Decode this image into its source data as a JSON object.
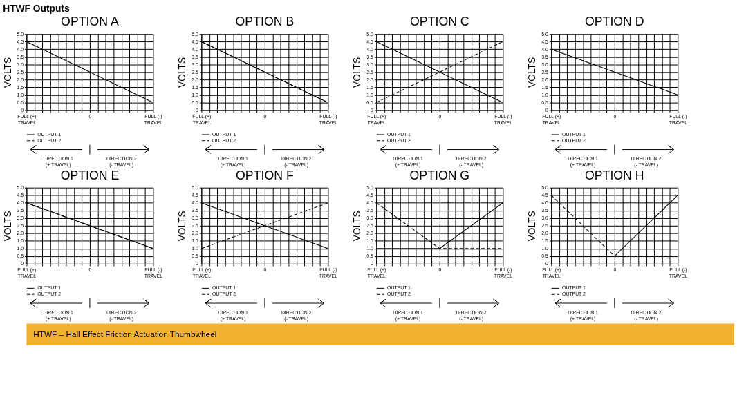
{
  "chart_data": [
    {
      "type": "line",
      "title": "OPTION A",
      "ylabel": "VOLTS",
      "categories": [
        "FULL (+)\nTRAVEL",
        null,
        null,
        null,
        null,
        null,
        null,
        null,
        "0",
        null,
        null,
        null,
        null,
        null,
        null,
        null,
        "FULL (-)\nTRAVEL"
      ],
      "ylim": [
        0,
        5
      ],
      "yticks": [
        0,
        0.5,
        {
          "value": 1,
          "label": "1.0"
        },
        1.5,
        {
          "value": 2,
          "label": "2.0"
        },
        2.5,
        {
          "value": 3,
          "label": "3.0"
        },
        3.5,
        {
          "value": 4,
          "label": "4.0"
        },
        4.5,
        {
          "value": 5,
          "label": "5.0"
        }
      ],
      "grid": true,
      "legend": "bottom left",
      "annotations": [
        "DIRECTION 1\n(+ TRAVEL)",
        "DIRECTION 2\n(- TRAVEL)"
      ],
      "series": [
        {
          "name": "OUTPUT 1",
          "color": "#000000",
          "line_style": "solid",
          "values": [
            4.5,
            4.25,
            4.0,
            3.75,
            3.5,
            3.25,
            3.0,
            2.75,
            2.5,
            2.25,
            2.0,
            1.75,
            1.5,
            1.25,
            1.0,
            0.75,
            0.5
          ]
        },
        {
          "name": "OUTPUT 2",
          "color": "#000000",
          "line_style": "dashed",
          "values": [
            null,
            null,
            null,
            null,
            null,
            null,
            null,
            null,
            null,
            null,
            null,
            null,
            null,
            null,
            null,
            null,
            null
          ]
        }
      ]
    },
    {
      "type": "line",
      "title": "OPTION B",
      "ylabel": "VOLTS",
      "categories": [
        "FULL (+)\nTRAVEL",
        null,
        null,
        null,
        null,
        null,
        null,
        null,
        "0",
        null,
        null,
        null,
        null,
        null,
        null,
        null,
        "FULL (-)\nTRAVEL"
      ],
      "ylim": [
        0,
        5
      ],
      "yticks": [
        0,
        0.5,
        {
          "value": 1,
          "label": "1.0"
        },
        1.5,
        {
          "value": 2,
          "label": "2.0"
        },
        2.5,
        {
          "value": 3,
          "label": "3.0"
        },
        3.5,
        {
          "value": 4,
          "label": "4.0"
        },
        4.5,
        {
          "value": 5,
          "label": "5.0"
        }
      ],
      "grid": true,
      "legend": "bottom left",
      "annotations": [
        "DIRECTION 1\n(+ TRAVEL)",
        "DIRECTION 2\n(- TRAVEL)"
      ],
      "series": [
        {
          "name": "OUTPUT 1",
          "color": "#000000",
          "line_style": "solid",
          "values": [
            4.5,
            4.25,
            4.0,
            3.75,
            3.5,
            3.25,
            3.0,
            2.75,
            2.5,
            2.25,
            2.0,
            1.75,
            1.5,
            1.25,
            1.0,
            0.75,
            0.5
          ]
        },
        {
          "name": "OUTPUT 2",
          "color": "#000000",
          "line_style": "dashed",
          "values": [
            4.5,
            4.25,
            4.0,
            3.75,
            3.5,
            3.25,
            3.0,
            2.75,
            2.5,
            2.25,
            2.0,
            1.75,
            1.5,
            1.25,
            1.0,
            0.75,
            0.5
          ]
        }
      ]
    },
    {
      "type": "line",
      "title": "OPTION C",
      "ylabel": "VOLTS",
      "categories": [
        "FULL (+)\nTRAVEL",
        null,
        null,
        null,
        null,
        null,
        null,
        null,
        "0",
        null,
        null,
        null,
        null,
        null,
        null,
        null,
        "FULL (-)\nTRAVEL"
      ],
      "ylim": [
        0,
        5
      ],
      "yticks": [
        0,
        0.5,
        {
          "value": 1,
          "label": "1.0"
        },
        1.5,
        {
          "value": 2,
          "label": "2.0"
        },
        2.5,
        {
          "value": 3,
          "label": "3.0"
        },
        3.5,
        {
          "value": 4,
          "label": "4.0"
        },
        4.5,
        {
          "value": 5,
          "label": "5.0"
        }
      ],
      "grid": true,
      "legend": "bottom left",
      "annotations": [
        "DIRECTION 1\n(+ TRAVEL)",
        "DIRECTION 2\n(- TRAVEL)"
      ],
      "series": [
        {
          "name": "OUTPUT 1",
          "color": "#000000",
          "line_style": "solid",
          "values": [
            4.5,
            4.25,
            4.0,
            3.75,
            3.5,
            3.25,
            3.0,
            2.75,
            2.5,
            2.25,
            2.0,
            1.75,
            1.5,
            1.25,
            1.0,
            0.75,
            0.5
          ]
        },
        {
          "name": "OUTPUT 2",
          "color": "#000000",
          "line_style": "dashed",
          "values": [
            0.5,
            0.75,
            1.0,
            1.25,
            1.5,
            1.75,
            2.0,
            2.25,
            2.5,
            2.75,
            3.0,
            3.25,
            3.5,
            3.75,
            4.0,
            4.25,
            4.5
          ]
        }
      ]
    },
    {
      "type": "line",
      "title": "OPTION D",
      "ylabel": "VOLTS",
      "categories": [
        "FULL (+)\nTRAVEL",
        null,
        null,
        null,
        null,
        null,
        null,
        null,
        "0",
        null,
        null,
        null,
        null,
        null,
        null,
        null,
        "FULL (-)\nTRAVEL"
      ],
      "ylim": [
        0,
        5
      ],
      "yticks": [
        0,
        0.5,
        {
          "value": 1,
          "label": "1.0"
        },
        1.5,
        {
          "value": 2,
          "label": "2.0"
        },
        2.5,
        {
          "value": 3,
          "label": "3.0"
        },
        3.5,
        {
          "value": 4,
          "label": "4.0"
        },
        4.5,
        {
          "value": 5,
          "label": "5.0"
        }
      ],
      "grid": true,
      "legend": "bottom left",
      "annotations": [
        "DIRECTION 1\n(+ TRAVEL)",
        "DIRECTION 2\n(- TRAVEL)"
      ],
      "series": [
        {
          "name": "OUTPUT 1",
          "color": "#000000",
          "line_style": "solid",
          "values": [
            4.0,
            3.81,
            3.63,
            3.44,
            3.25,
            3.06,
            2.88,
            2.69,
            2.5,
            2.31,
            2.13,
            1.94,
            1.75,
            1.56,
            1.38,
            1.19,
            1.0
          ]
        },
        {
          "name": "OUTPUT 2",
          "color": "#000000",
          "line_style": "dashed",
          "values": [
            null,
            null,
            null,
            null,
            null,
            null,
            null,
            null,
            null,
            null,
            null,
            null,
            null,
            null,
            null,
            null,
            null
          ]
        }
      ]
    },
    {
      "type": "line",
      "title": "OPTION E",
      "ylabel": "VOLTS",
      "categories": [
        "FULL (+)\nTRAVEL",
        null,
        null,
        null,
        null,
        null,
        null,
        null,
        "0",
        null,
        null,
        null,
        null,
        null,
        null,
        null,
        "FULL (-)\nTRAVEL"
      ],
      "ylim": [
        0,
        5
      ],
      "yticks": [
        0,
        0.5,
        {
          "value": 1,
          "label": "1.0"
        },
        1.5,
        {
          "value": 2,
          "label": "2.0"
        },
        2.5,
        {
          "value": 3,
          "label": "3.0"
        },
        3.5,
        {
          "value": 4,
          "label": "4.0"
        },
        4.5,
        {
          "value": 5,
          "label": "5.0"
        }
      ],
      "grid": true,
      "legend": "bottom left",
      "annotations": [
        "DIRECTION 1\n(+ TRAVEL)",
        "DIRECTION 2\n(- TRAVEL)"
      ],
      "series": [
        {
          "name": "OUTPUT 1",
          "color": "#000000",
          "line_style": "solid",
          "values": [
            4.0,
            3.81,
            3.63,
            3.44,
            3.25,
            3.06,
            2.88,
            2.69,
            2.5,
            2.31,
            2.13,
            1.94,
            1.75,
            1.56,
            1.38,
            1.19,
            1.0
          ]
        },
        {
          "name": "OUTPUT 2",
          "color": "#000000",
          "line_style": "dashed",
          "values": [
            4.0,
            3.81,
            3.63,
            3.44,
            3.25,
            3.06,
            2.88,
            2.69,
            2.5,
            2.31,
            2.13,
            1.94,
            1.75,
            1.56,
            1.38,
            1.19,
            1.0
          ]
        }
      ]
    },
    {
      "type": "line",
      "title": "OPTION F",
      "ylabel": "VOLTS",
      "categories": [
        "FULL (+)\nTRAVEL",
        null,
        null,
        null,
        null,
        null,
        null,
        null,
        "0",
        null,
        null,
        null,
        null,
        null,
        null,
        null,
        "FULL (-)\nTRAVEL"
      ],
      "ylim": [
        0,
        5
      ],
      "yticks": [
        0,
        0.5,
        {
          "value": 1,
          "label": "1.0"
        },
        1.5,
        {
          "value": 2,
          "label": "2.0"
        },
        2.5,
        {
          "value": 3,
          "label": "3.0"
        },
        3.5,
        {
          "value": 4,
          "label": "4.0"
        },
        4.5,
        {
          "value": 5,
          "label": "5.0"
        }
      ],
      "grid": true,
      "legend": "bottom left",
      "annotations": [
        "DIRECTION 1\n(+ TRAVEL)",
        "DIRECTION 2\n(- TRAVEL)"
      ],
      "series": [
        {
          "name": "OUTPUT 1",
          "color": "#000000",
          "line_style": "solid",
          "values": [
            4.0,
            3.81,
            3.63,
            3.44,
            3.25,
            3.06,
            2.88,
            2.69,
            2.5,
            2.31,
            2.13,
            1.94,
            1.75,
            1.56,
            1.38,
            1.19,
            1.0
          ]
        },
        {
          "name": "OUTPUT 2",
          "color": "#000000",
          "line_style": "dashed",
          "values": [
            1.0,
            1.19,
            1.38,
            1.56,
            1.75,
            1.94,
            2.13,
            2.31,
            2.5,
            2.69,
            2.88,
            3.06,
            3.25,
            3.44,
            3.63,
            3.81,
            4.0
          ]
        }
      ]
    },
    {
      "type": "line",
      "title": "OPTION G",
      "ylabel": "VOLTS",
      "categories": [
        "FULL (+)\nTRAVEL",
        null,
        null,
        null,
        null,
        null,
        null,
        null,
        "0",
        null,
        null,
        null,
        null,
        null,
        null,
        null,
        "FULL (-)\nTRAVEL"
      ],
      "ylim": [
        0,
        5
      ],
      "yticks": [
        0,
        0.5,
        {
          "value": 1,
          "label": "1.0"
        },
        1.5,
        {
          "value": 2,
          "label": "2.0"
        },
        2.5,
        {
          "value": 3,
          "label": "3.0"
        },
        3.5,
        {
          "value": 4,
          "label": "4.0"
        },
        4.5,
        {
          "value": 5,
          "label": "5.0"
        }
      ],
      "grid": true,
      "legend": "bottom left",
      "annotations": [
        "DIRECTION 1\n(+ TRAVEL)",
        "DIRECTION 2\n(- TRAVEL)"
      ],
      "series": [
        {
          "name": "OUTPUT 1",
          "color": "#000000",
          "line_style": "solid",
          "values": [
            1.0,
            1.0,
            1.0,
            1.0,
            1.0,
            1.0,
            1.0,
            1.0,
            1.0,
            1.38,
            1.75,
            2.13,
            2.5,
            2.88,
            3.25,
            3.63,
            4.0
          ]
        },
        {
          "name": "OUTPUT 2",
          "color": "#000000",
          "line_style": "dashed",
          "values": [
            4.0,
            3.63,
            3.25,
            2.88,
            2.5,
            2.13,
            1.75,
            1.38,
            1.0,
            1.0,
            1.0,
            1.0,
            1.0,
            1.0,
            1.0,
            1.0,
            1.0
          ]
        }
      ]
    },
    {
      "type": "line",
      "title": "OPTION H",
      "ylabel": "VOLTS",
      "categories": [
        "FULL (+)\nTRAVEL",
        null,
        null,
        null,
        null,
        null,
        null,
        null,
        "0",
        null,
        null,
        null,
        null,
        null,
        null,
        null,
        "FULL (-)\nTRAVEL"
      ],
      "ylim": [
        0,
        5
      ],
      "yticks": [
        0,
        0.5,
        {
          "value": 1,
          "label": "1.0"
        },
        1.5,
        {
          "value": 2,
          "label": "2.0"
        },
        2.5,
        {
          "value": 3,
          "label": "3.0"
        },
        3.5,
        {
          "value": 4,
          "label": "4.0"
        },
        4.5,
        {
          "value": 5,
          "label": "5.0"
        }
      ],
      "grid": true,
      "legend": "bottom left",
      "annotations": [
        "DIRECTION 1\n(+ TRAVEL)",
        "DIRECTION 2\n(- TRAVEL)"
      ],
      "series": [
        {
          "name": "OUTPUT 1",
          "color": "#000000",
          "line_style": "solid",
          "values": [
            0.5,
            0.5,
            0.5,
            0.5,
            0.5,
            0.5,
            0.5,
            0.5,
            0.5,
            1.0,
            1.5,
            2.0,
            2.5,
            3.0,
            3.5,
            4.0,
            4.5
          ]
        },
        {
          "name": "OUTPUT 2",
          "color": "#000000",
          "line_style": "dashed",
          "values": [
            4.5,
            4.0,
            3.5,
            3.0,
            2.5,
            2.0,
            1.5,
            1.0,
            0.5,
            0.5,
            0.5,
            0.5,
            0.5,
            0.5,
            0.5,
            0.5,
            0.5
          ]
        }
      ]
    },
    {
      "type": "other",
      "title": "HTWF Outputs"
    },
    {
      "type": "other",
      "color": "#f0b030",
      "annotations": [
        "HTWF – Hall Effect Friction Actuation Thumbwheel"
      ]
    }
  ]
}
